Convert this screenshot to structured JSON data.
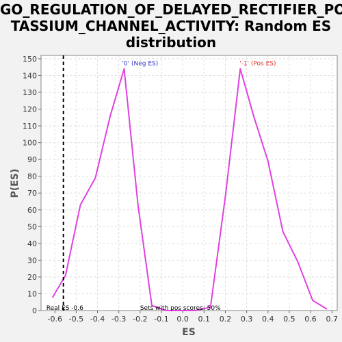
{
  "chart_data": {
    "type": "line",
    "title_lines": [
      "GO_REGULATION_OF_DELAYED_RECTIFIER_PO",
      "TASSIUM_CHANNEL_ACTIVITY: Random ES",
      "distribution"
    ],
    "xlabel": "ES",
    "ylabel": "P(ES)",
    "xlim": [
      -0.665,
      0.725
    ],
    "ylim": [
      0,
      152
    ],
    "x_ticks": [
      -0.6,
      -0.5,
      -0.4,
      -0.3,
      -0.2,
      -0.1,
      0.0,
      0.1,
      0.2,
      0.3,
      0.4,
      0.5,
      0.6,
      0.7
    ],
    "x_tick_labels": [
      "-0.6",
      "-0.5",
      "-0.4",
      "-0.3",
      "-0.2",
      "-0.1",
      "0.0",
      "0.1",
      "0.2",
      "0.3",
      "0.4",
      "0.5",
      "0.6",
      "0.7"
    ],
    "y_ticks": [
      0,
      10,
      20,
      30,
      40,
      50,
      60,
      70,
      80,
      90,
      100,
      110,
      120,
      130,
      140,
      150
    ],
    "y_tick_labels": [
      "0",
      "10",
      "20",
      "30",
      "40",
      "50",
      "60",
      "70",
      "80",
      "90",
      "100",
      "110",
      "120",
      "130",
      "140",
      "150"
    ],
    "grid": true,
    "series": [
      {
        "color": "#e040e0",
        "x": [
          -0.61,
          -0.55,
          -0.48,
          -0.41,
          -0.34,
          -0.275,
          -0.21,
          -0.145,
          -0.08,
          0.0,
          0.06,
          0.13,
          0.2,
          0.27,
          0.335,
          0.4,
          0.47,
          0.54,
          0.61,
          0.675
        ],
        "y": [
          8,
          21,
          63,
          79,
          116,
          144,
          63,
          3,
          0,
          0,
          0,
          2,
          68,
          144,
          115,
          89,
          47,
          29,
          6,
          1
        ]
      }
    ],
    "vline": {
      "x": -0.56,
      "style": "dashed",
      "color": "#000000"
    },
    "annotations": [
      {
        "text": "'0' (Neg ES)",
        "x": -0.2,
        "y": 146,
        "color": "#3333cc"
      },
      {
        "text": "'-1' (Pos ES)",
        "x": 0.352,
        "y": 146,
        "color": "#dd3333"
      },
      {
        "text": "Real ES -0.6",
        "x": -0.64,
        "y": 0.4,
        "color": "#000000"
      },
      {
        "text": "Sets with pos scores: 50%",
        "x": -0.2,
        "y": 0.4,
        "color": "#000000"
      }
    ]
  }
}
